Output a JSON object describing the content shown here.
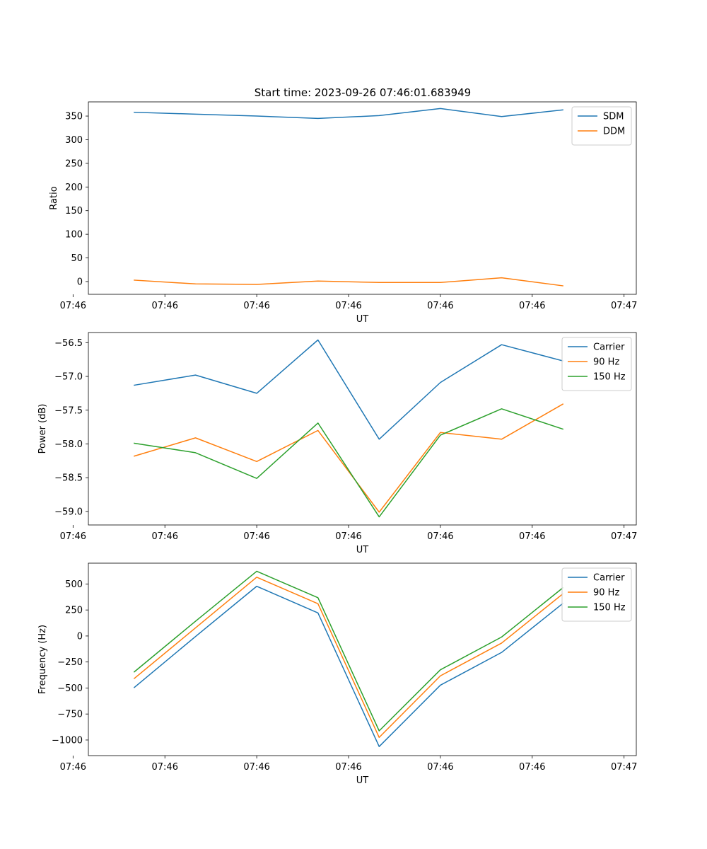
{
  "figure_title": "Start time: 2023-09-26 07:46:01.683949",
  "colors": {
    "blue": "#1f77b4",
    "orange": "#ff7f0e",
    "green": "#2ca02c"
  },
  "chart_data": [
    {
      "type": "line",
      "title": "Start time: 2023-09-26 07:46:01.683949",
      "xlabel": "UT",
      "ylabel": "Ratio",
      "x": [
        1,
        2,
        3,
        4,
        5,
        6,
        7,
        8
      ],
      "xlim": [
        0.25,
        9.2
      ],
      "xticks": [
        0,
        1.5,
        3,
        4.5,
        6,
        7.5,
        9
      ],
      "xtick_labels": [
        "07:46",
        "07:46",
        "07:46",
        "07:46",
        "07:46",
        "07:46",
        "07:47"
      ],
      "ylim": [
        -27,
        380
      ],
      "yticks": [
        0,
        50,
        100,
        150,
        200,
        250,
        300,
        350
      ],
      "ytick_labels": [
        "0",
        "50",
        "100",
        "150",
        "200",
        "250",
        "300",
        "350"
      ],
      "legend_position": "top-right",
      "series": [
        {
          "name": "SDM",
          "color": "#1f77b4",
          "values": [
            358,
            354,
            350,
            345,
            351,
            366,
            349,
            363
          ]
        },
        {
          "name": "DDM",
          "color": "#ff7f0e",
          "values": [
            3,
            -5,
            -6,
            1,
            -2,
            -2,
            8,
            -9
          ]
        }
      ]
    },
    {
      "type": "line",
      "xlabel": "UT",
      "ylabel": "Power (dB)",
      "x": [
        1,
        2,
        3,
        4,
        5,
        6,
        7,
        8
      ],
      "xlim": [
        0.25,
        9.2
      ],
      "xticks": [
        0,
        1.5,
        3,
        4.5,
        6,
        7.5,
        9
      ],
      "xtick_labels": [
        "07:46",
        "07:46",
        "07:46",
        "07:46",
        "07:46",
        "07:46",
        "07:47"
      ],
      "ylim": [
        -59.2,
        -56.35
      ],
      "yticks": [
        -56.5,
        -57.0,
        -57.5,
        -58.0,
        -58.5,
        -59.0
      ],
      "ytick_labels": [
        "−56.5",
        "−57.0",
        "−57.5",
        "−58.0",
        "−58.5",
        "−59.0"
      ],
      "legend_position": "top-right",
      "series": [
        {
          "name": "Carrier",
          "color": "#1f77b4",
          "values": [
            -57.13,
            -56.98,
            -57.25,
            -56.46,
            -57.93,
            -57.09,
            -56.53,
            -56.77
          ]
        },
        {
          "name": "90 Hz",
          "color": "#ff7f0e",
          "values": [
            -58.18,
            -57.91,
            -58.26,
            -57.8,
            -59.01,
            -57.83,
            -57.93,
            -57.41
          ]
        },
        {
          "name": "150 Hz",
          "color": "#2ca02c",
          "values": [
            -57.99,
            -58.13,
            -58.51,
            -57.69,
            -59.08,
            -57.87,
            -57.48,
            -57.78
          ]
        }
      ]
    },
    {
      "type": "line",
      "xlabel": "UT",
      "ylabel": "Frequency (Hz)",
      "x": [
        1,
        2,
        3,
        4,
        5,
        6,
        7,
        8
      ],
      "xlim": [
        0.25,
        9.2
      ],
      "xticks": [
        0,
        1.5,
        3,
        4.5,
        6,
        7.5,
        9
      ],
      "xtick_labels": [
        "07:46",
        "07:46",
        "07:46",
        "07:46",
        "07:46",
        "07:46",
        "07:47"
      ],
      "ylim": [
        -1150,
        700
      ],
      "yticks": [
        500,
        250,
        0,
        -250,
        -500,
        -750,
        -1000
      ],
      "ytick_labels": [
        "500",
        "250",
        "0",
        "−250",
        "−500",
        "−750",
        "−1000"
      ],
      "legend_position": "top-right",
      "series": [
        {
          "name": "Carrier",
          "color": "#1f77b4",
          "values": [
            -495,
            -5,
            478,
            222,
            -1063,
            -473,
            -158,
            313
          ]
        },
        {
          "name": "90 Hz",
          "color": "#ff7f0e",
          "values": [
            -408,
            78,
            565,
            310,
            -975,
            -383,
            -68,
            405
          ]
        },
        {
          "name": "150 Hz",
          "color": "#2ca02c",
          "values": [
            -345,
            142,
            622,
            368,
            -912,
            -325,
            -10,
            463
          ]
        }
      ]
    }
  ]
}
